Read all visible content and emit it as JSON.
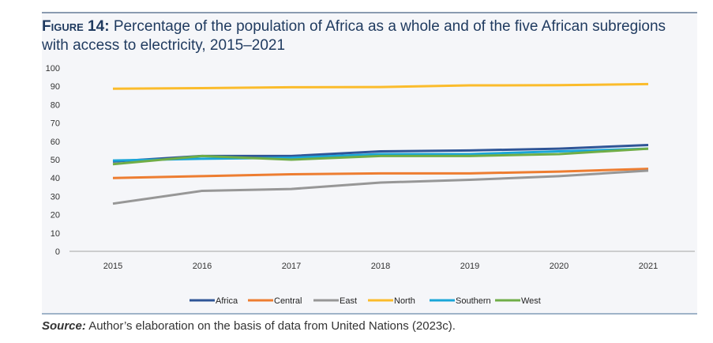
{
  "figure_label": "Figure 14:",
  "title": "Percentage of the population of Africa as a whole and of the five African subregions with access to electricity, 2015–2021",
  "source_label": "Source:",
  "source_text": "Author’s elaboration on the basis of data from United Nations (2023c).",
  "chart_data": {
    "type": "line",
    "categories": [
      "2015",
      "2016",
      "2017",
      "2018",
      "2019",
      "2020",
      "2021"
    ],
    "ylim": [
      0,
      100
    ],
    "yticks": [
      0,
      10,
      20,
      30,
      40,
      50,
      60,
      70,
      80,
      90,
      100
    ],
    "grid": false,
    "legend": "bottom",
    "series": [
      {
        "name": "Africa",
        "color": "#2f5597",
        "values": [
          49,
          52,
          52,
          54.5,
          55,
          56,
          58
        ]
      },
      {
        "name": "Central",
        "color": "#ed7d31",
        "values": [
          40,
          41,
          42,
          42.5,
          42.5,
          43.5,
          45
        ]
      },
      {
        "name": "East",
        "color": "#979797",
        "values": [
          26,
          33,
          34,
          37.5,
          39,
          41,
          44
        ]
      },
      {
        "name": "North",
        "color": "#fbbc2c",
        "values": [
          88.7,
          89,
          89.5,
          89.6,
          90.5,
          90.6,
          91.2
        ]
      },
      {
        "name": "Southern",
        "color": "#1aa6d8",
        "values": [
          49.5,
          50.5,
          51,
          53,
          53,
          54.5,
          56
        ]
      },
      {
        "name": "West",
        "color": "#70ad47",
        "values": [
          47.5,
          52,
          50,
          52,
          52,
          53,
          56
        ]
      }
    ]
  }
}
